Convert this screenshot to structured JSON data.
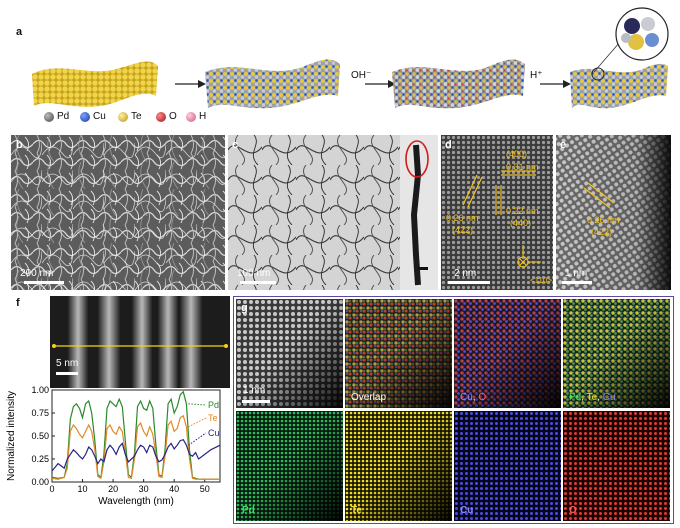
{
  "panel_labels": {
    "a": "a",
    "b": "b",
    "c": "c",
    "d": "d",
    "e": "e",
    "f": "f",
    "g": "g"
  },
  "panel_a": {
    "legend": [
      {
        "label": "Pd",
        "color": "#5a5a5a"
      },
      {
        "label": "Cu",
        "color": "#1d4fb8"
      },
      {
        "label": "Te",
        "color": "#d9b52a"
      },
      {
        "label": "O",
        "color": "#d21c1c"
      },
      {
        "label": "H",
        "color": "#e5809a"
      }
    ],
    "arrow_oh_label": "OH⁻",
    "arrow_h_label": "H⁺",
    "colors": {
      "te": "#e0c53c",
      "pd": "#8a8f99",
      "cu": "#1f56c7"
    }
  },
  "panel_b": {
    "scale_bar": "200 nm"
  },
  "panel_c": {
    "scale_bar": "100 nm"
  },
  "panel_d": {
    "scale_bar": "2 nm",
    "d1": "0.26 nm",
    "h1": "(422)",
    "d2": "0.22 nm",
    "h2": "(440)",
    "d3": "(400)",
    "d3b": "0.31 nm",
    "angle": "<110>"
  },
  "panel_e": {
    "scale_bar": "1 nm",
    "d1": "0.26 nm",
    "h1": "(422)"
  },
  "panel_f": {
    "scale_bar": "5 nm"
  },
  "panel_g": {
    "scale_bar": "1 nm",
    "tiles": [
      {
        "label": "Overlap"
      },
      {
        "label_a": "Cu",
        "label_sep": ", ",
        "label_b": "O"
      },
      {
        "label_a": "Pd",
        "label_sep1": ", ",
        "label_b": "Te",
        "label_sep2": ", ",
        "label_c": "Cu"
      },
      {
        "label": "Pd"
      },
      {
        "label": "Te"
      },
      {
        "label": "Cu"
      },
      {
        "label": "O"
      }
    ],
    "colors": {
      "pd": "#2bbf5c",
      "te": "#f0df28",
      "cu": "#4a4ae0",
      "o": "#e0392e"
    }
  },
  "chart_data": {
    "type": "line",
    "xlabel": "Wavelength (nm)",
    "ylabel": "Normalized intensity",
    "xlim": [
      0,
      55
    ],
    "ylim": [
      0,
      1.0
    ],
    "xticks": [
      0,
      10,
      20,
      30,
      40,
      50
    ],
    "yticks": [
      0.0,
      0.25,
      0.5,
      0.75,
      1.0
    ],
    "series": [
      {
        "name": "Pd",
        "color": "#2a8a2a",
        "x": [
          0,
          2,
          4,
          5,
          6,
          7,
          8,
          9,
          10,
          11,
          12,
          13,
          14,
          15,
          16,
          17,
          18,
          19,
          20,
          21,
          22,
          23,
          24,
          25,
          26,
          27,
          28,
          29,
          30,
          31,
          32,
          33,
          34,
          35,
          36,
          37,
          38,
          39,
          40,
          41,
          42,
          43,
          44,
          45,
          46,
          47,
          48,
          50,
          52,
          55
        ],
        "values": [
          0.05,
          0.04,
          0.05,
          0.2,
          0.68,
          0.82,
          0.85,
          0.8,
          0.7,
          0.85,
          0.88,
          0.75,
          0.45,
          0.08,
          0.05,
          0.3,
          0.8,
          0.88,
          0.85,
          0.82,
          0.9,
          0.82,
          0.45,
          0.08,
          0.05,
          0.32,
          0.82,
          0.88,
          0.8,
          0.78,
          0.88,
          0.8,
          0.4,
          0.08,
          0.06,
          0.35,
          0.85,
          0.9,
          0.75,
          0.82,
          0.95,
          0.98,
          0.85,
          0.35,
          0.05,
          0.04,
          0.03,
          0.03,
          0.03,
          0.03
        ]
      },
      {
        "name": "Te",
        "color": "#e0892a",
        "x": [
          0,
          2,
          4,
          5,
          6,
          7,
          8,
          9,
          10,
          11,
          12,
          13,
          14,
          15,
          16,
          17,
          18,
          19,
          20,
          21,
          22,
          23,
          24,
          25,
          26,
          27,
          28,
          29,
          30,
          31,
          32,
          33,
          34,
          35,
          36,
          37,
          38,
          39,
          40,
          41,
          42,
          43,
          44,
          45,
          46,
          47,
          48,
          50,
          52,
          55
        ],
        "values": [
          0.04,
          0.03,
          0.05,
          0.15,
          0.55,
          0.62,
          0.58,
          0.52,
          0.48,
          0.55,
          0.62,
          0.55,
          0.35,
          0.06,
          0.04,
          0.22,
          0.58,
          0.62,
          0.55,
          0.52,
          0.6,
          0.55,
          0.32,
          0.05,
          0.04,
          0.25,
          0.6,
          0.64,
          0.55,
          0.5,
          0.6,
          0.52,
          0.3,
          0.06,
          0.05,
          0.28,
          0.62,
          0.66,
          0.55,
          0.58,
          0.7,
          0.72,
          0.6,
          0.25,
          0.04,
          0.03,
          0.03,
          0.03,
          0.03,
          0.03
        ]
      },
      {
        "name": "Cu",
        "color": "#24248a",
        "x": [
          0,
          2,
          4,
          5,
          6,
          7,
          8,
          9,
          10,
          11,
          12,
          13,
          14,
          15,
          16,
          17,
          18,
          19,
          20,
          21,
          22,
          23,
          24,
          25,
          26,
          27,
          28,
          29,
          30,
          31,
          32,
          33,
          34,
          35,
          36,
          37,
          38,
          39,
          40,
          41,
          42,
          43,
          44,
          45,
          46,
          47,
          48,
          50,
          52,
          55
        ],
        "values": [
          0.12,
          0.2,
          0.15,
          0.25,
          0.3,
          0.35,
          0.32,
          0.28,
          0.25,
          0.3,
          0.38,
          0.35,
          0.28,
          0.2,
          0.25,
          0.22,
          0.35,
          0.4,
          0.36,
          0.3,
          0.38,
          0.42,
          0.3,
          0.22,
          0.25,
          0.28,
          0.35,
          0.4,
          0.38,
          0.32,
          0.4,
          0.38,
          0.28,
          0.22,
          0.24,
          0.3,
          0.38,
          0.42,
          0.36,
          0.4,
          0.45,
          0.46,
          0.4,
          0.3,
          0.28,
          0.32,
          0.25,
          0.3,
          0.35,
          0.4
        ]
      }
    ]
  }
}
